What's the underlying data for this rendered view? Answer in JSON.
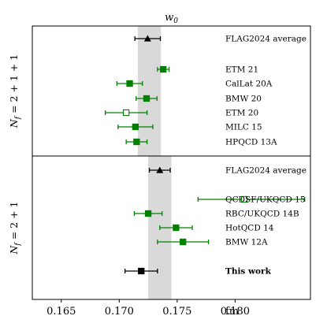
{
  "chart_data": {
    "type": "scatter",
    "title": "w0",
    "unit": "fm",
    "xlim": [
      0.1625,
      0.1865
    ],
    "x_ticks": [
      "0.165",
      "0.170",
      "0.175",
      "0.180"
    ],
    "x_tick_values": [
      0.165,
      0.17,
      0.175,
      0.18
    ],
    "colors": {
      "accent": "#008000",
      "average": "#000000",
      "band": "#d9d9d9"
    },
    "panels": [
      {
        "label": "N_f = 2+1+1",
        "label_main": "N",
        "label_sub": "f",
        "label_rest": " = 2 + 1 + 1",
        "band": [
          0.1716,
          0.1736
        ],
        "entries": [
          {
            "name": "FLAG2024 average",
            "value": 0.17245,
            "err_minus": 0.0011,
            "err_plus": 0.0011,
            "marker": "triangle",
            "fill": "filled",
            "color": "#000000",
            "bold": false
          },
          {
            "name": "ETM 21",
            "value": 0.1738,
            "err_minus": 0.0005,
            "err_plus": 0.0005,
            "marker": "square",
            "fill": "filled",
            "color": "#008000",
            "bold": false
          },
          {
            "name": "CalLat 20A",
            "value": 0.1709,
            "err_minus": 0.0011,
            "err_plus": 0.0011,
            "marker": "square",
            "fill": "filled",
            "color": "#008000",
            "bold": false
          },
          {
            "name": "BMW 20",
            "value": 0.17236,
            "err_minus": 0.0009,
            "err_plus": 0.0009,
            "marker": "square",
            "fill": "filled",
            "color": "#008000",
            "bold": false
          },
          {
            "name": "ETM 20",
            "value": 0.1706,
            "err_minus": 0.0018,
            "err_plus": 0.0018,
            "marker": "square",
            "fill": "open",
            "color": "#008000",
            "bold": false
          },
          {
            "name": "MILC 15",
            "value": 0.1714,
            "err_minus": 0.0015,
            "err_plus": 0.0015,
            "marker": "square",
            "fill": "filled",
            "color": "#008000",
            "bold": false
          },
          {
            "name": "HPQCD 13A",
            "value": 0.1715,
            "err_minus": 0.0009,
            "err_plus": 0.0009,
            "marker": "square",
            "fill": "filled",
            "color": "#008000",
            "bold": false
          }
        ]
      },
      {
        "label": "N_f = 2+1",
        "label_main": "N",
        "label_sub": "f",
        "label_rest": " = 2 + 1",
        "band": [
          0.1725,
          0.1745
        ],
        "entries": [
          {
            "name": "FLAG2024 average",
            "value": 0.1735,
            "err_minus": 0.0009,
            "err_plus": 0.0009,
            "marker": "triangle",
            "fill": "filled",
            "color": "#000000",
            "bold": false
          },
          {
            "name": "QCDSF/UKQCD 15",
            "value": 0.1808,
            "err_minus": 0.004,
            "err_plus": 0.0052,
            "marker": "square",
            "fill": "open",
            "color": "#008000",
            "bold": false
          },
          {
            "name": "RBC/UKQCD 14B",
            "value": 0.1725,
            "err_minus": 0.0012,
            "err_plus": 0.0012,
            "marker": "square",
            "fill": "filled",
            "color": "#008000",
            "bold": false
          },
          {
            "name": "HotQCD 14",
            "value": 0.1749,
            "err_minus": 0.0014,
            "err_plus": 0.0014,
            "marker": "square",
            "fill": "filled",
            "color": "#008000",
            "bold": false
          },
          {
            "name": "BMW 12A",
            "value": 0.1755,
            "err_minus": 0.0022,
            "err_plus": 0.0022,
            "marker": "square",
            "fill": "filled",
            "color": "#008000",
            "bold": false
          },
          {
            "name": "This work",
            "value": 0.1719,
            "err_minus": 0.0014,
            "err_plus": 0.0014,
            "marker": "square",
            "fill": "filled",
            "color": "#000000",
            "bold": true
          }
        ]
      }
    ]
  }
}
